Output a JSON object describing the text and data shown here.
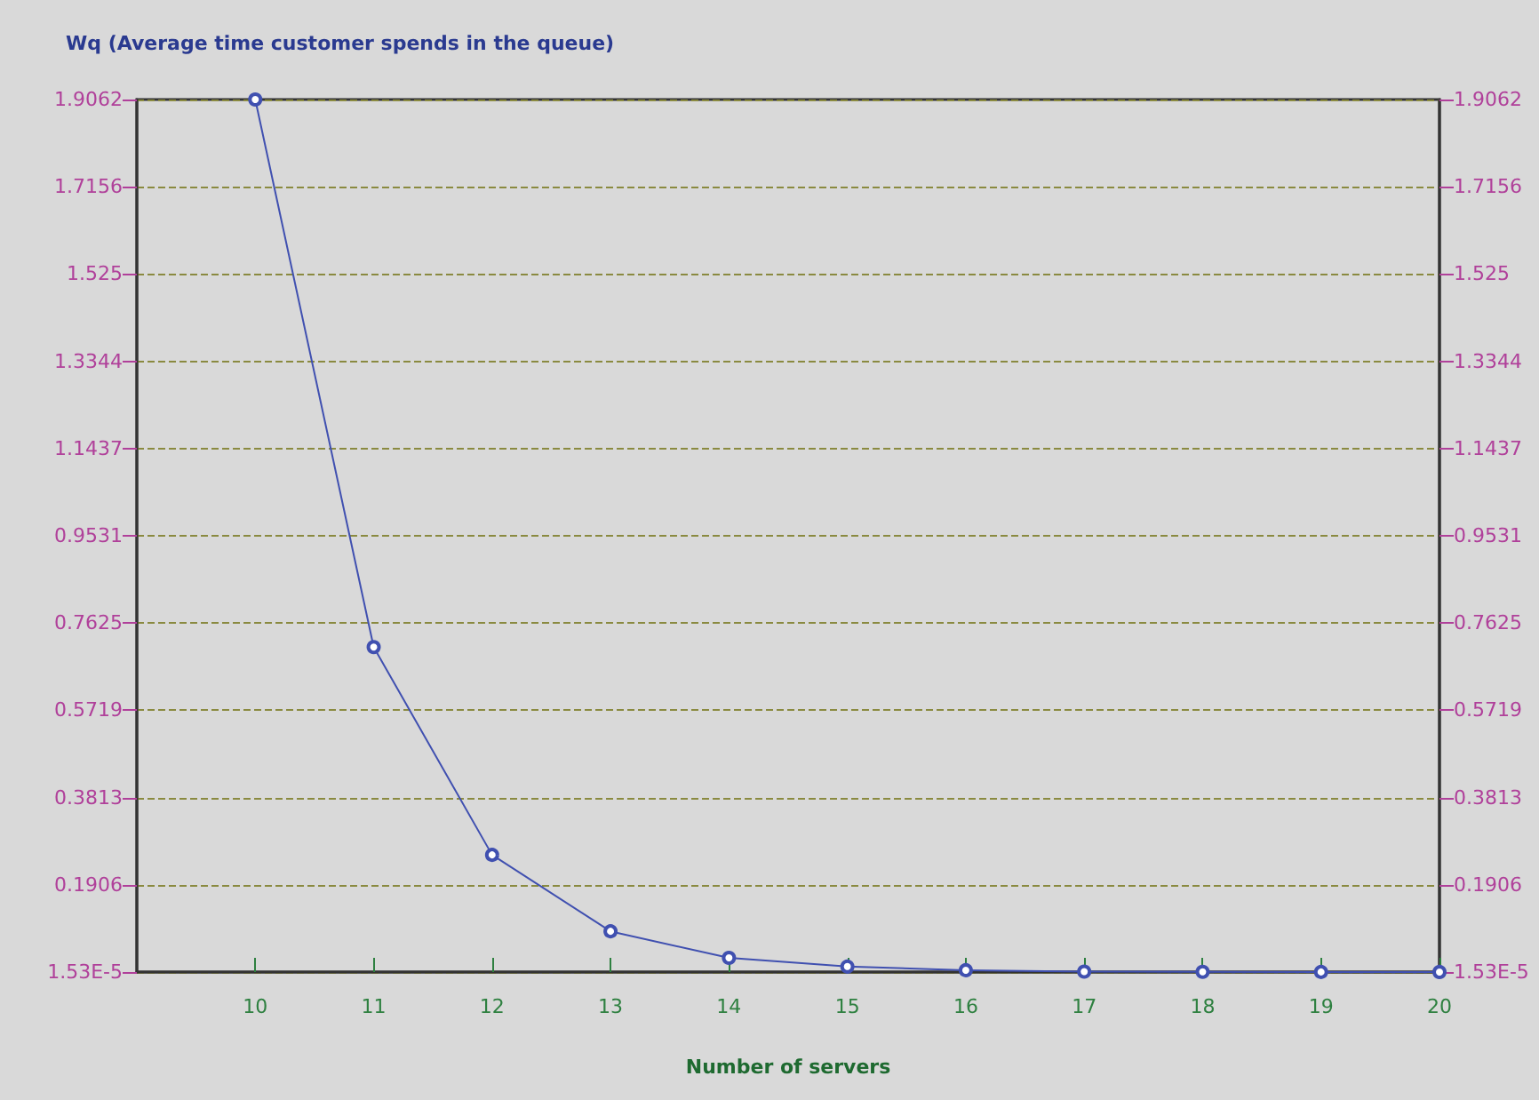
{
  "chart_data": {
    "type": "line",
    "title": "Wq (Average time customer spends in the queue)",
    "xlabel": "Number of servers",
    "x": [
      10,
      11,
      12,
      13,
      14,
      15,
      16,
      17,
      18,
      19,
      20
    ],
    "series": [
      {
        "color": "#4050b0",
        "values": [
          1.9062,
          0.71,
          0.256,
          0.089,
          0.031,
          0.012,
          0.004,
          0.001,
          0.0005,
          0.0002,
          0.0001
        ]
      }
    ],
    "xlim": [
      9,
      20
    ],
    "xticks": [
      10,
      11,
      12,
      13,
      14,
      15,
      16,
      17,
      18,
      19,
      20
    ],
    "ylim": [
      1.53e-05,
      1.9062
    ],
    "yticks": [
      {
        "value": 1.53e-05,
        "label": "1.53E-5"
      },
      0.1906,
      0.3813,
      0.5719,
      0.7625,
      0.9531,
      1.1437,
      1.3344,
      1.525,
      1.7156,
      1.9062
    ],
    "y2lim": [
      1.53e-05,
      1.9062
    ],
    "y2ticks": [
      {
        "value": 1.53e-05,
        "label": "1.53E-5"
      },
      0.1906,
      0.3813,
      0.5719,
      0.7625,
      0.9531,
      1.1437,
      1.3344,
      1.525,
      1.7156,
      1.9062
    ],
    "grid": "y",
    "marker": "circle",
    "line_style": "solid"
  }
}
